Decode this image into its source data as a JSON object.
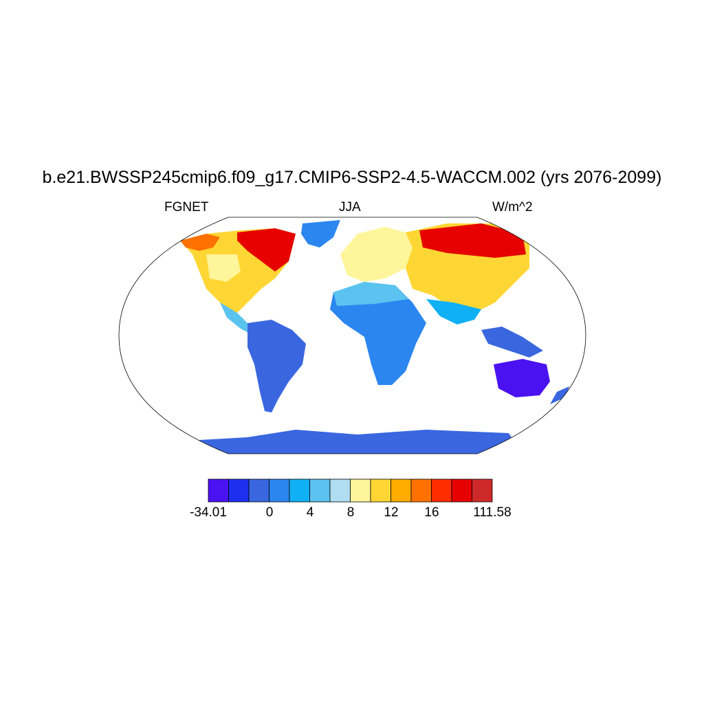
{
  "title": "b.e21.BWSSP245cmip6.f09_g17.CMIP6-SSP2-4.5-WACCM.002 (yrs 2076-2099)",
  "subtitle_left": "FGNET",
  "subtitle_center": "JJA",
  "subtitle_right": "W/m^2",
  "colorbar": {
    "colors": [
      "#4a12f0",
      "#1f2ff0",
      "#3a67e0",
      "#2b86f0",
      "#10b0f5",
      "#5ac3ef",
      "#b1ddf2",
      "#fff59a",
      "#ffd633",
      "#ffab00",
      "#ff7100",
      "#ff2d00",
      "#e60000",
      "#cf2a2a"
    ],
    "labels": [
      "-34.01",
      "0",
      "4",
      "8",
      "12",
      "16",
      "111.58"
    ]
  }
}
